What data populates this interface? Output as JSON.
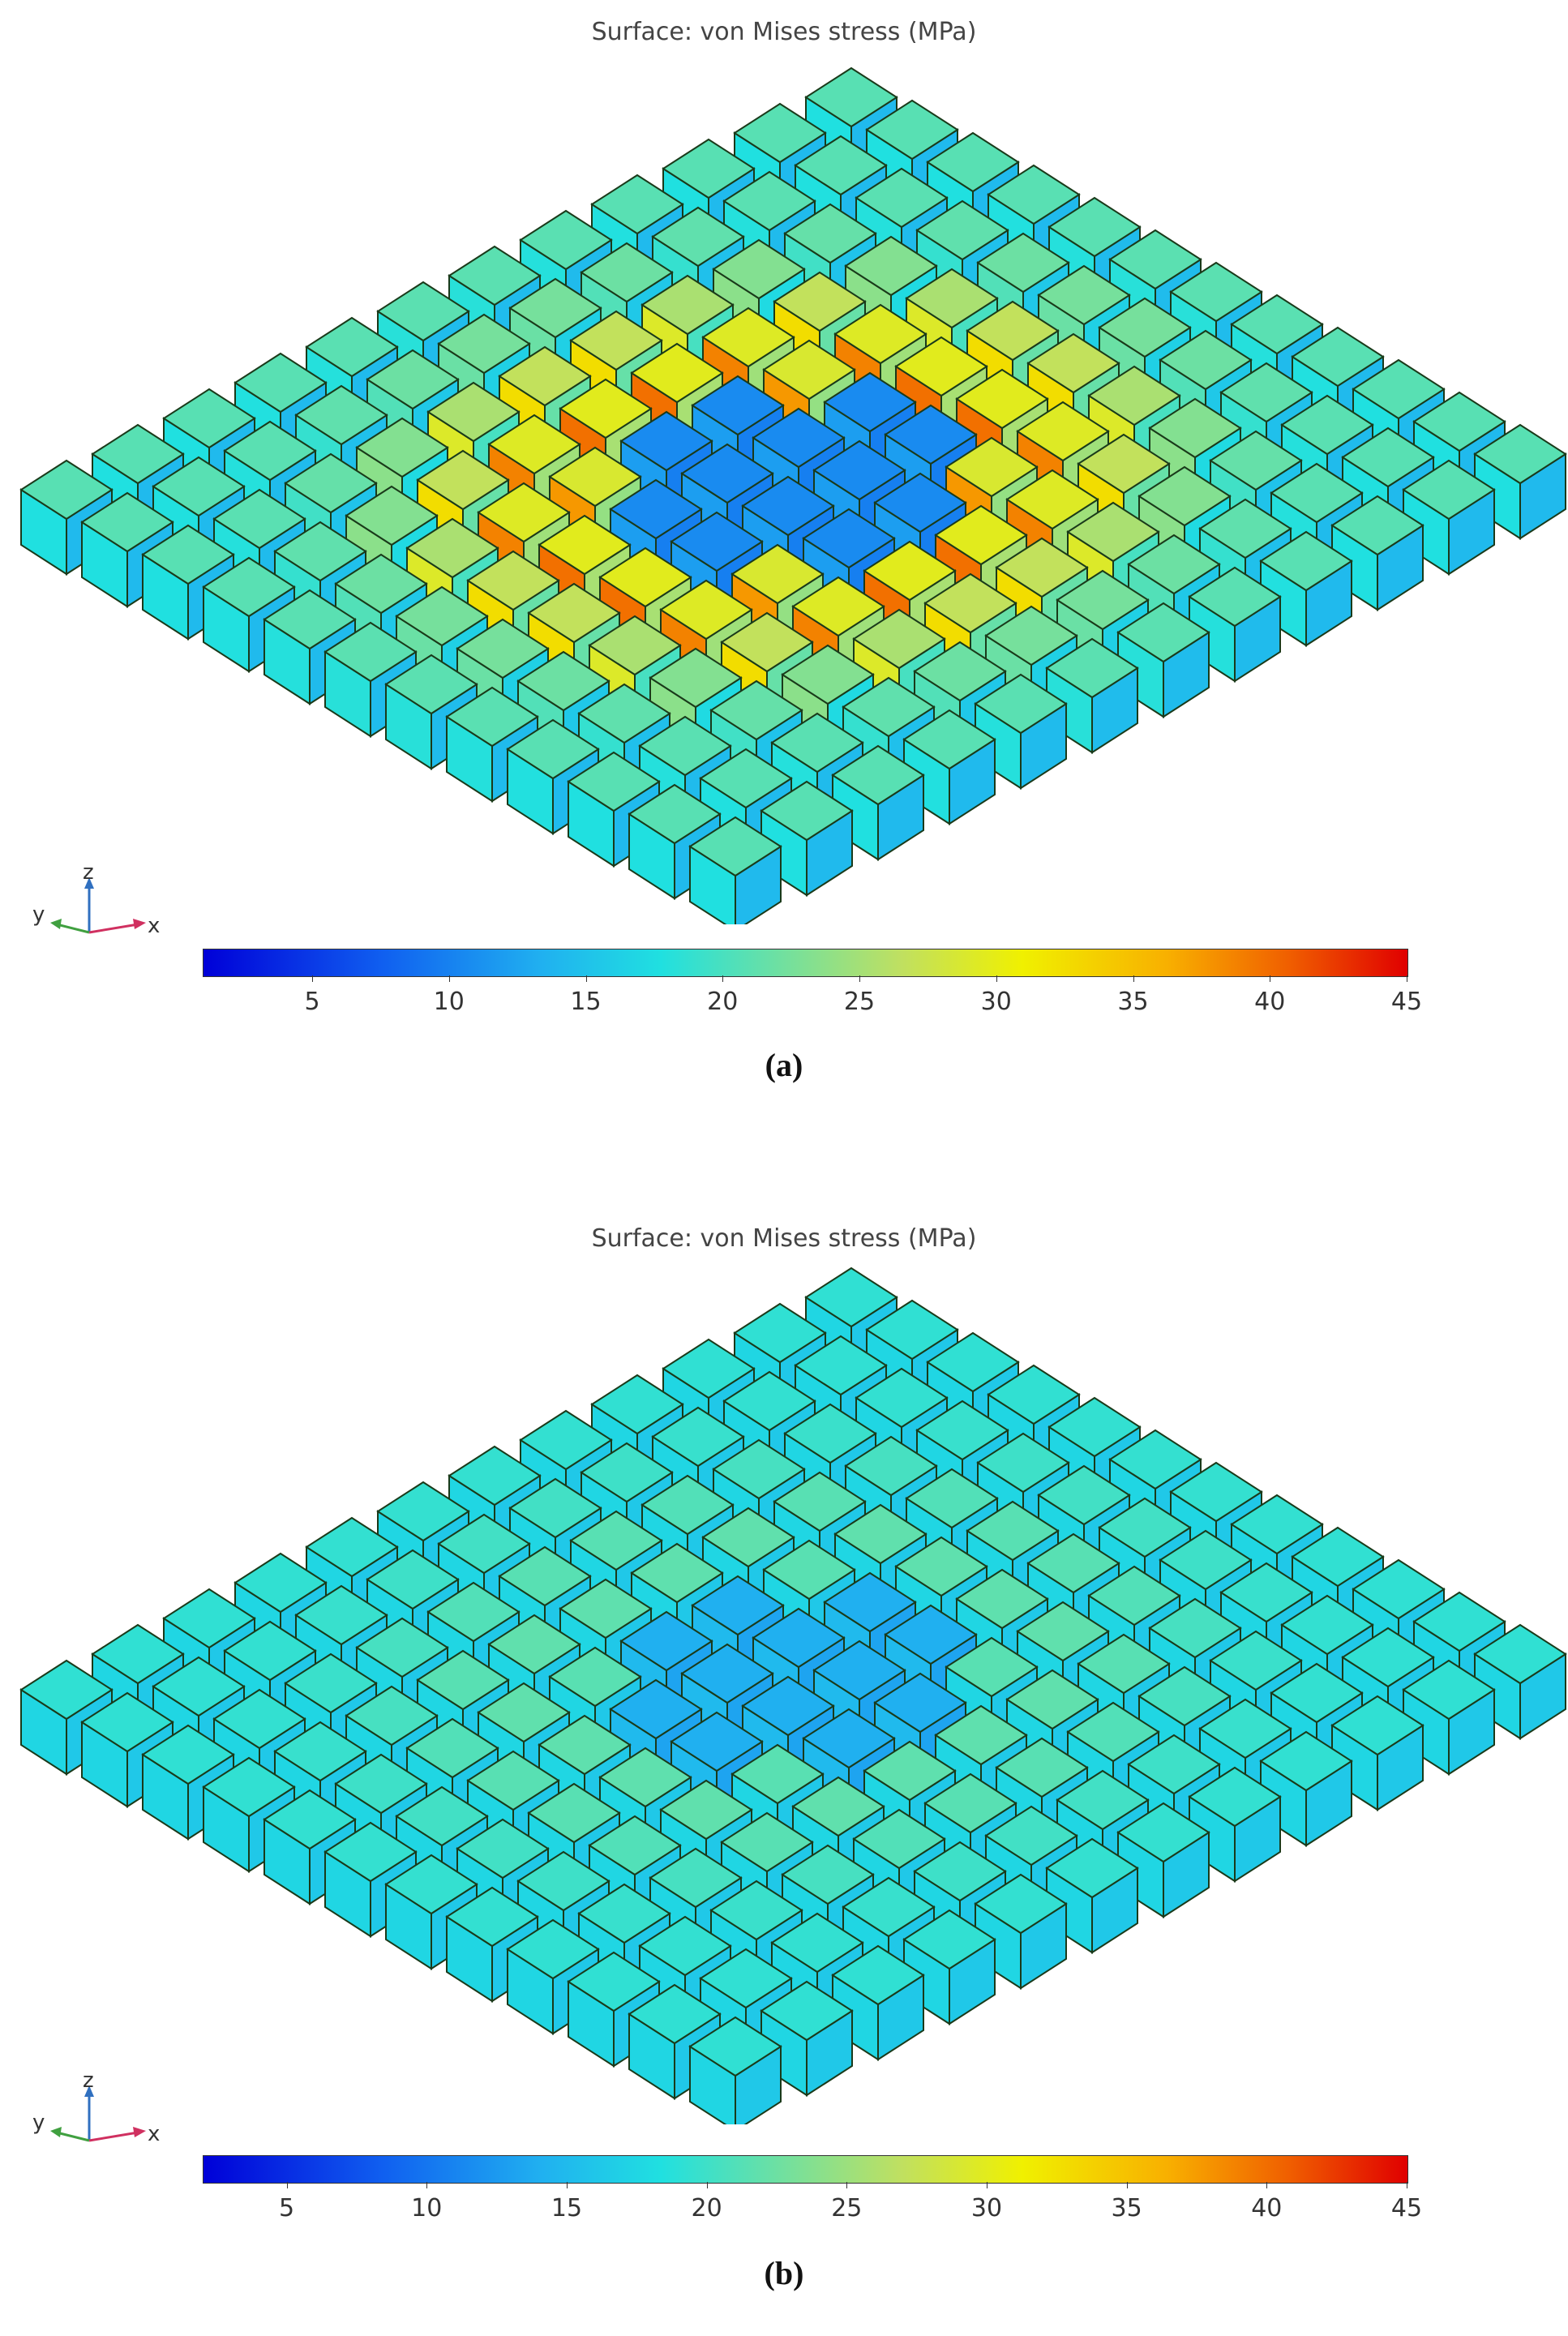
{
  "figure": {
    "panels": [
      {
        "id": "a",
        "title": "Surface: von Mises stress (MPa)",
        "label": "(a)",
        "colorbar": {
          "ticks": [
            "5",
            "10",
            "15",
            "20",
            "25",
            "30",
            "35",
            "40",
            "45"
          ],
          "min": 1,
          "max": 45
        },
        "axes": {
          "x": "x",
          "y": "y",
          "z": "z"
        },
        "state": "high-stress"
      },
      {
        "id": "b",
        "title": "Surface: von Mises stress (MPa)",
        "label": "(b)",
        "colorbar": {
          "ticks": [
            "5",
            "10",
            "15",
            "20",
            "25",
            "30",
            "35",
            "40",
            "45"
          ],
          "min": 2,
          "max": 45
        },
        "axes": {
          "x": "x",
          "y": "y",
          "z": "z"
        },
        "state": "low-stress"
      }
    ],
    "grid": {
      "rows": 12,
      "cols": 12
    },
    "colors": {
      "low": "#0000d8",
      "mid": "#20e0e0",
      "high": "#e00000",
      "edge": "#1a3a1a"
    }
  }
}
